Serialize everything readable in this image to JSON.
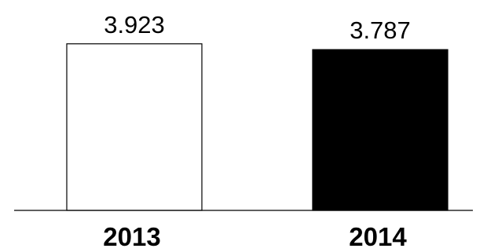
{
  "chart_data": {
    "type": "bar",
    "title": "",
    "xlabel": "",
    "ylabel": "",
    "categories": [
      "2013",
      "2014"
    ],
    "values": [
      3.923,
      3.787
    ],
    "value_labels": [
      "3.923",
      "3.787"
    ],
    "ylim": [
      0,
      4.4
    ],
    "grid": false,
    "legend": "none",
    "bar_fill_colors": [
      "#ffffff",
      "#000000"
    ],
    "bar_stroke_color": "#000000",
    "axis_color": "#000000"
  }
}
